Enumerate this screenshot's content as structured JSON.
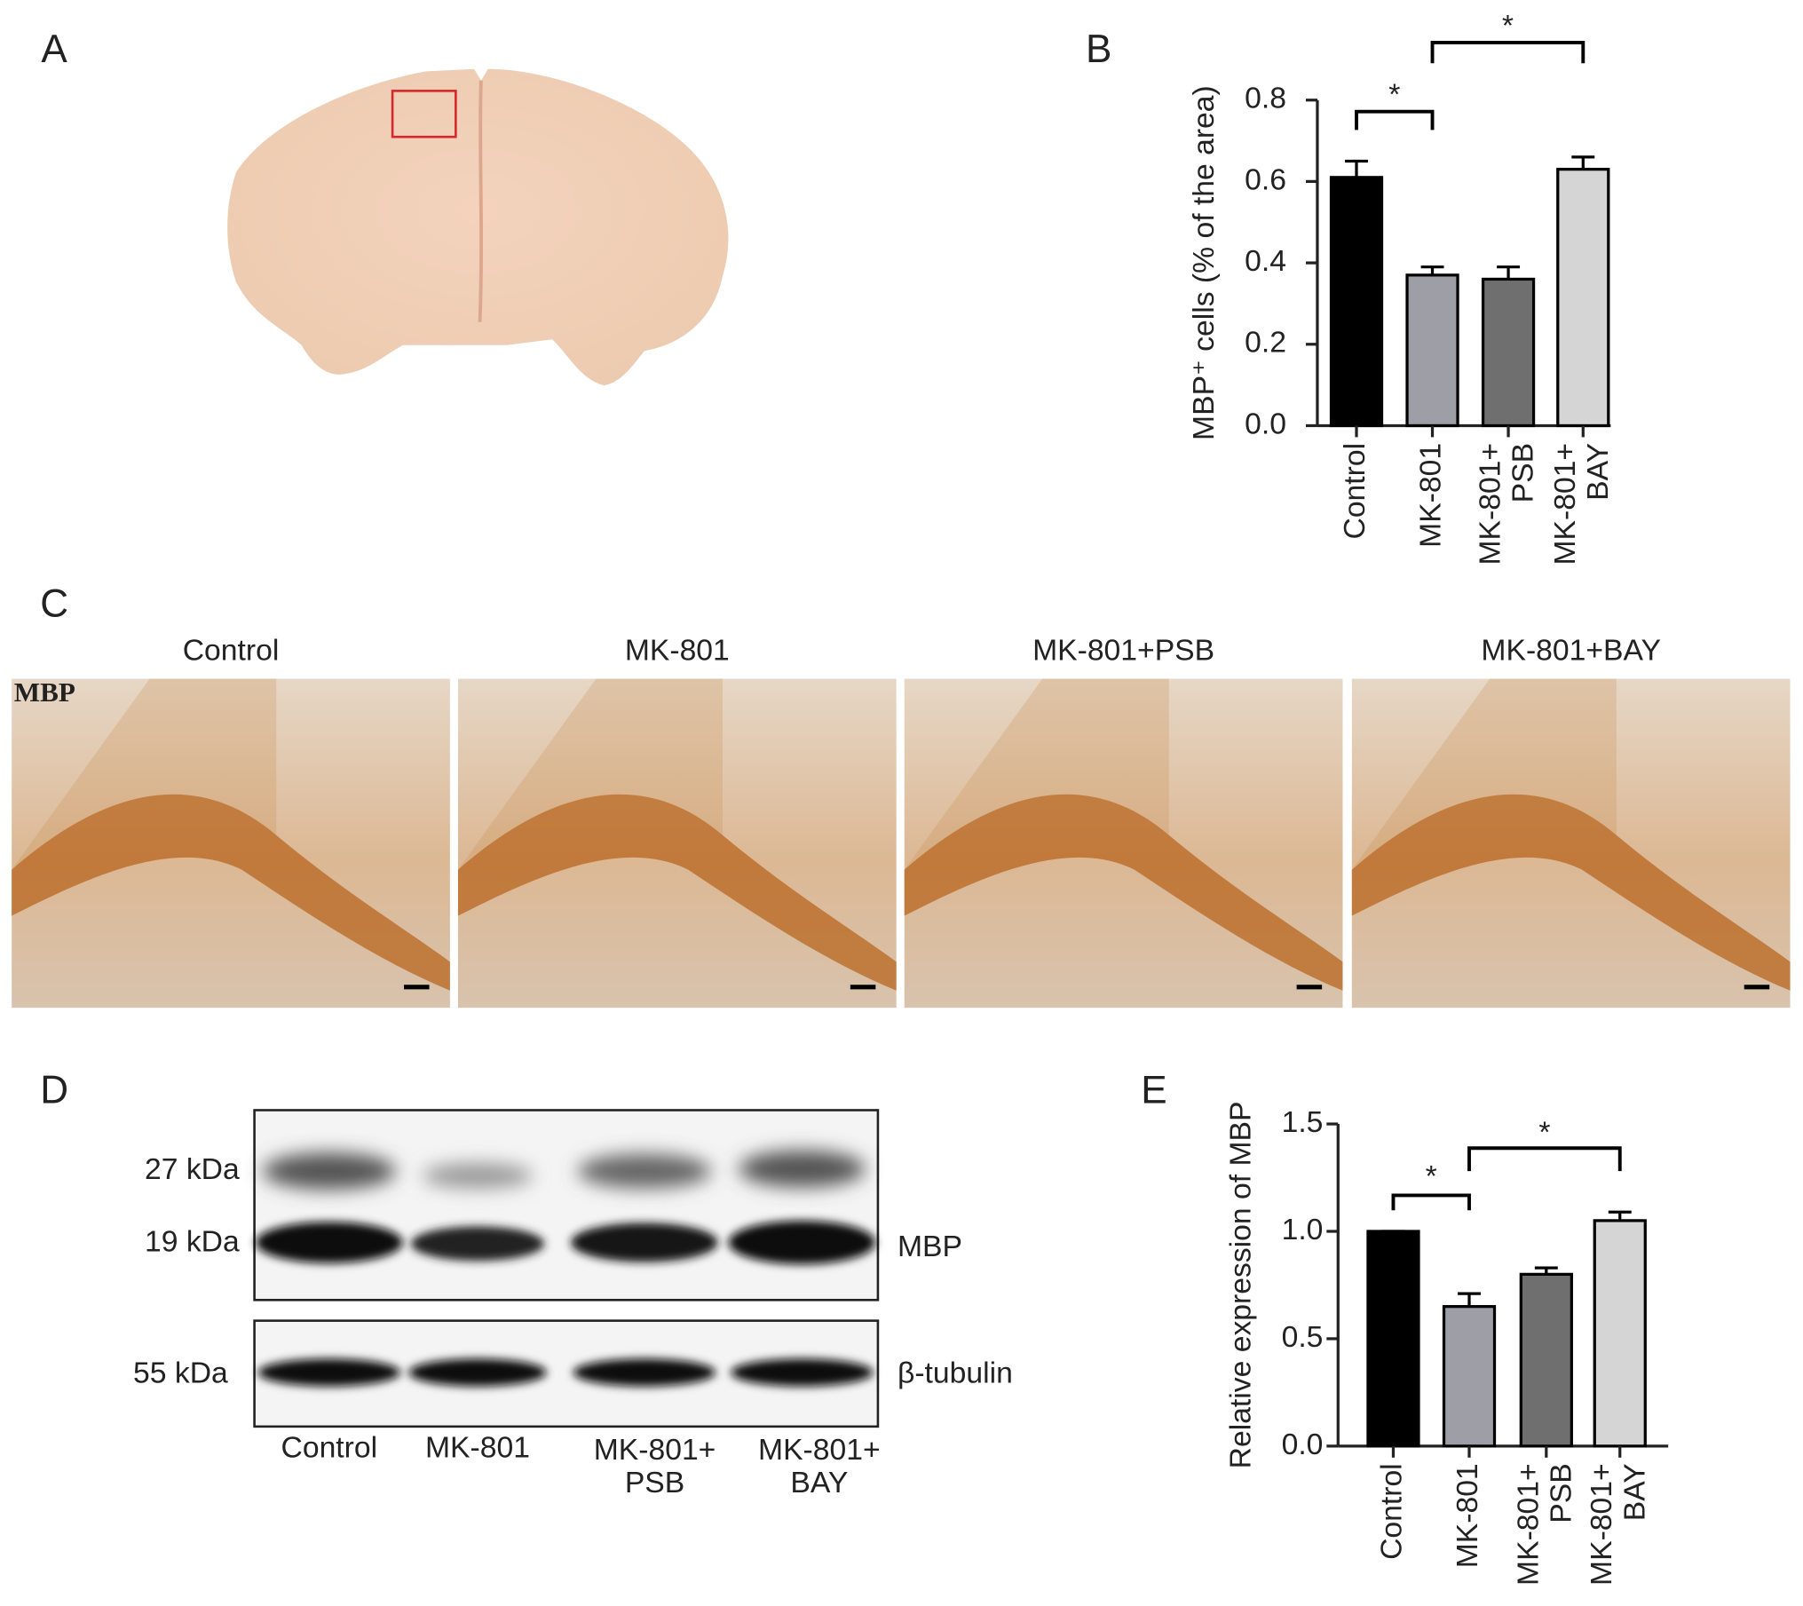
{
  "panel_labels": [
    "A",
    "B",
    "C",
    "D",
    "E"
  ],
  "chart_data": [
    {
      "type": "bar",
      "ylabel": "MBP⁺ cells (% of the area)",
      "categories": [
        "Control",
        "MK-801",
        "MK-801+\nPSB",
        "MK-801+\nBAY"
      ],
      "values": [
        0.61,
        0.37,
        0.36,
        0.63
      ],
      "errors": [
        0.04,
        0.02,
        0.03,
        0.03
      ],
      "colors": [
        "#000000",
        "#9d9ea6",
        "#6f6f6f",
        "#d5d5d5"
      ],
      "ylim": [
        0,
        0.8
      ],
      "yticks": [
        {
          "value": 0,
          "label": "0.0"
        },
        0.2,
        0.4,
        0.6,
        0.8
      ],
      "significance": [
        {
          "pair": [
            0,
            1
          ],
          "label": "*"
        },
        {
          "pair": [
            1,
            3
          ],
          "label": "*"
        }
      ]
    },
    {
      "type": "bar",
      "ylabel": "Relative expression of MBP",
      "categories": [
        "Control",
        "MK-801",
        "MK-801+\nPSB",
        "MK-801+\nBAY"
      ],
      "values": [
        1.0,
        0.65,
        0.8,
        1.05
      ],
      "errors": [
        0,
        0.06,
        0.03,
        0.04
      ],
      "colors": [
        "#000000",
        "#9d9ea6",
        "#6f6f6f",
        "#d5d5d5"
      ],
      "ylim": [
        0,
        1.5
      ],
      "yticks": [
        {
          "value": 0,
          "label": "0.0"
        },
        0.5,
        {
          "value": 1,
          "label": "1.0"
        },
        1.5
      ],
      "significance": [
        {
          "pair": [
            0,
            1
          ],
          "label": "*"
        },
        {
          "pair": [
            1,
            3
          ],
          "label": "*"
        }
      ]
    }
  ],
  "histology": {
    "panels": [
      "Control",
      "MK-801",
      "MK-801+PSB",
      "MK-801+BAY"
    ],
    "stain": "MBP"
  },
  "western_blot": {
    "markers": [
      "27 kDa",
      "19 kDa",
      "55 kDa"
    ],
    "proteins": [
      "MBP",
      "β-tubulin"
    ],
    "lanes": [
      "Control",
      "MK-801",
      "MK-801+\nPSB",
      "MK-801+\nBAY"
    ]
  }
}
